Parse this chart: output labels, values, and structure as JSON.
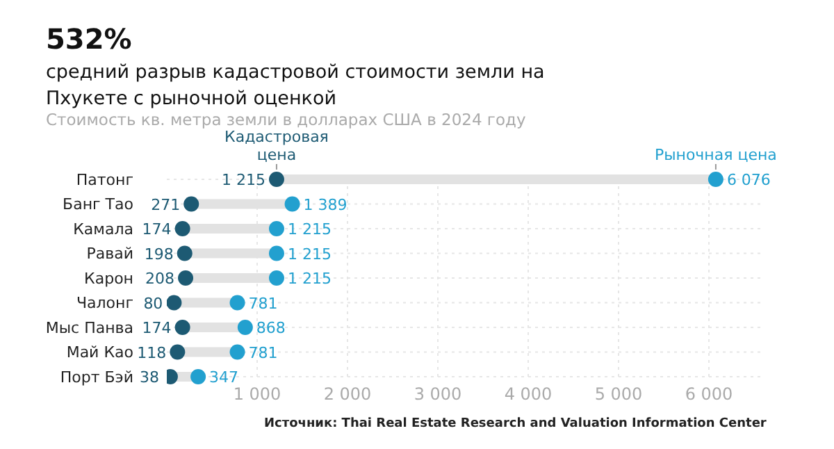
{
  "chart_data": {
    "type": "scatter",
    "orientation": "horizontal",
    "title": "532%",
    "subtitle": "средний разрыв кадастровой стоимости земли на Пхукете с рыночной оценкой",
    "annotations": [
      "Стоимость кв. метра земли в долларах США в 2024 году",
      "Источник: Thai Real Estate Research and Valuation Information Center"
    ],
    "categories": [
      "Патонг",
      "Банг Тао",
      "Камала",
      "Равай",
      "Карон",
      "Чалонг",
      "Мыс Панва",
      "Май Као",
      "Порт Бэй"
    ],
    "series": [
      {
        "name": "Кадастровая цена",
        "color": "#1d5a73",
        "values": [
          1215,
          271,
          174,
          198,
          208,
          80,
          174,
          118,
          38
        ],
        "value_labels": [
          "1 215",
          "271",
          "174",
          "198",
          "208",
          "80",
          "174",
          "118",
          "38"
        ]
      },
      {
        "name": "Рыночная цена",
        "color": "#22a0cf",
        "values": [
          6076,
          1389,
          1215,
          1215,
          1215,
          781,
          868,
          781,
          347
        ],
        "value_labels": [
          "6 076",
          "1 389",
          "1 215",
          "1 215",
          "1 215",
          "781",
          "868",
          "781",
          "347"
        ]
      }
    ],
    "xlim": [
      0,
      6600
    ],
    "xticks": [
      {
        "value": 1000,
        "label": "1 000"
      },
      {
        "value": 2000,
        "label": "2 000"
      },
      {
        "value": 3000,
        "label": "3 000"
      },
      {
        "value": 4000,
        "label": "4 000"
      },
      {
        "value": 5000,
        "label": "5 000"
      },
      {
        "value": 6000,
        "label": "6 000"
      }
    ],
    "grid": true,
    "marker": "circle",
    "legend": false
  }
}
